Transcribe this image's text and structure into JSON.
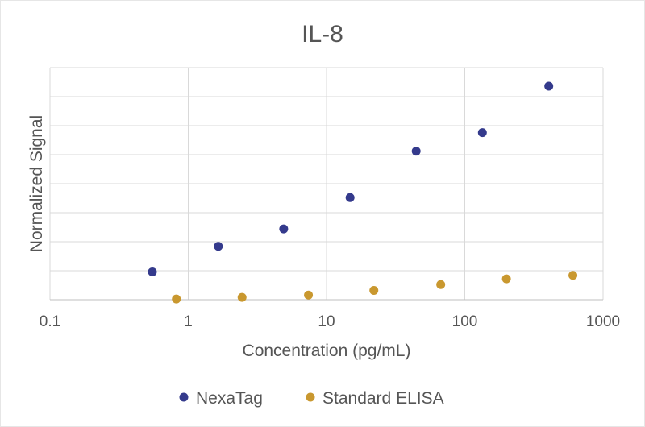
{
  "chart_data": {
    "type": "scatter",
    "title": "IL-8",
    "xlabel": "Concentration (pg/mL)",
    "ylabel": "Normalized Signal",
    "x_scale": "log",
    "xlim": [
      0.1,
      1000
    ],
    "x_ticks": [
      "0.1",
      "1",
      "10",
      "100",
      "1000"
    ],
    "ylim": [
      0,
      1
    ],
    "grid": true,
    "legend": "bottom",
    "series": [
      {
        "name": "NexaTag",
        "color": "#343a8c",
        "points": [
          {
            "x": 0.55,
            "y": 0.12
          },
          {
            "x": 1.65,
            "y": 0.23
          },
          {
            "x": 4.9,
            "y": 0.305
          },
          {
            "x": 14.8,
            "y": 0.44
          },
          {
            "x": 44.5,
            "y": 0.64
          },
          {
            "x": 134,
            "y": 0.72
          },
          {
            "x": 405,
            "y": 0.92
          }
        ]
      },
      {
        "name": "Standard ELISA",
        "color": "#c9982f",
        "points": [
          {
            "x": 0.82,
            "y": 0.003
          },
          {
            "x": 2.45,
            "y": 0.01
          },
          {
            "x": 7.4,
            "y": 0.02
          },
          {
            "x": 22,
            "y": 0.04
          },
          {
            "x": 67,
            "y": 0.065
          },
          {
            "x": 200,
            "y": 0.09
          },
          {
            "x": 605,
            "y": 0.105
          }
        ]
      }
    ]
  }
}
